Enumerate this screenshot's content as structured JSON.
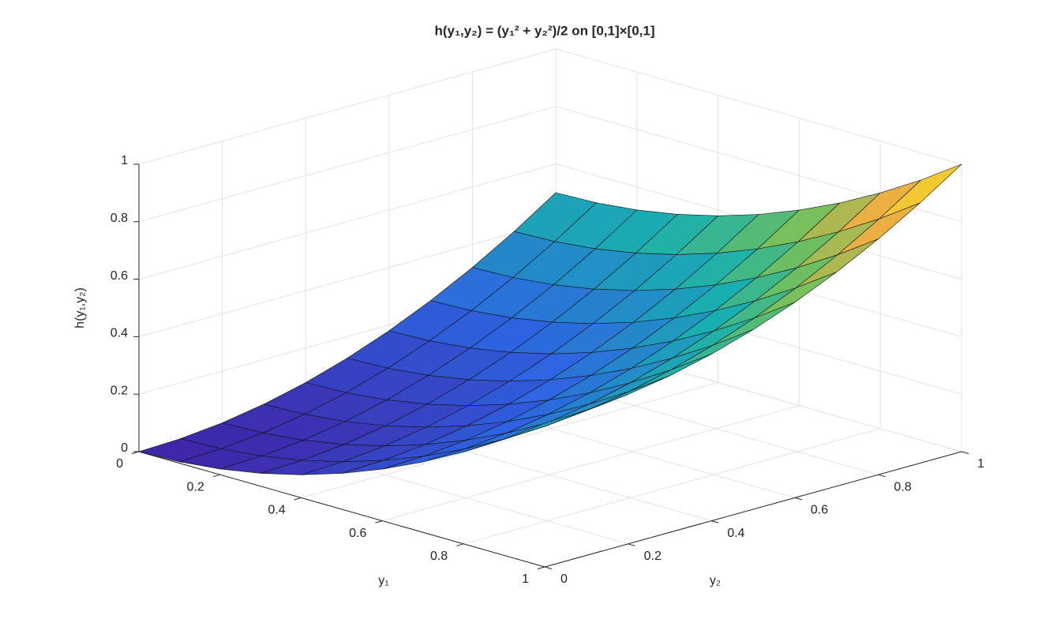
{
  "chart_data": {
    "type": "surface",
    "title": "h(y₁,y₂)  =  (y₁² + y₂²)/2  on  [0,1]×[0,1]",
    "xlabel": "y₁",
    "ylabel": "y₂",
    "zlabel": "h(y₁,y₂)",
    "colormap": "parula",
    "grid": true,
    "xlim": [
      0,
      1
    ],
    "ylim": [
      0,
      1
    ],
    "zlim": [
      0,
      1
    ],
    "xticks": [
      0,
      0.2,
      0.4,
      0.6,
      0.8,
      1
    ],
    "yticks": [
      0,
      0.2,
      0.4,
      0.6,
      0.8,
      1
    ],
    "zticks": [
      0,
      0.2,
      0.4,
      0.6,
      0.8,
      1
    ],
    "x": [
      0,
      0.1,
      0.2,
      0.3,
      0.4,
      0.5,
      0.6,
      0.7,
      0.8,
      0.9,
      1
    ],
    "y": [
      0,
      0.1,
      0.2,
      0.3,
      0.4,
      0.5,
      0.6,
      0.7,
      0.8,
      0.9,
      1
    ],
    "z": [
      [
        0,
        0.005,
        0.02,
        0.045,
        0.08,
        0.125,
        0.18,
        0.245,
        0.32,
        0.405,
        0.5
      ],
      [
        0.005,
        0.01,
        0.025,
        0.05,
        0.085,
        0.13,
        0.185,
        0.25,
        0.325,
        0.41,
        0.505
      ],
      [
        0.02,
        0.025,
        0.04,
        0.065,
        0.1,
        0.145,
        0.2,
        0.265,
        0.34,
        0.425,
        0.52
      ],
      [
        0.045,
        0.05,
        0.065,
        0.09,
        0.125,
        0.17,
        0.225,
        0.29,
        0.365,
        0.45,
        0.545
      ],
      [
        0.08,
        0.085,
        0.1,
        0.125,
        0.16,
        0.205,
        0.26,
        0.325,
        0.4,
        0.485,
        0.58
      ],
      [
        0.125,
        0.13,
        0.145,
        0.17,
        0.205,
        0.25,
        0.305,
        0.37,
        0.445,
        0.53,
        0.625
      ],
      [
        0.18,
        0.185,
        0.2,
        0.225,
        0.26,
        0.305,
        0.36,
        0.425,
        0.5,
        0.585,
        0.68
      ],
      [
        0.245,
        0.25,
        0.265,
        0.29,
        0.325,
        0.37,
        0.425,
        0.49,
        0.565,
        0.65,
        0.745
      ],
      [
        0.32,
        0.325,
        0.34,
        0.365,
        0.4,
        0.445,
        0.5,
        0.565,
        0.64,
        0.725,
        0.82
      ],
      [
        0.405,
        0.41,
        0.425,
        0.45,
        0.485,
        0.53,
        0.585,
        0.65,
        0.725,
        0.81,
        0.905
      ],
      [
        0.5,
        0.505,
        0.52,
        0.545,
        0.58,
        0.625,
        0.68,
        0.745,
        0.82,
        0.905,
        1
      ]
    ]
  }
}
